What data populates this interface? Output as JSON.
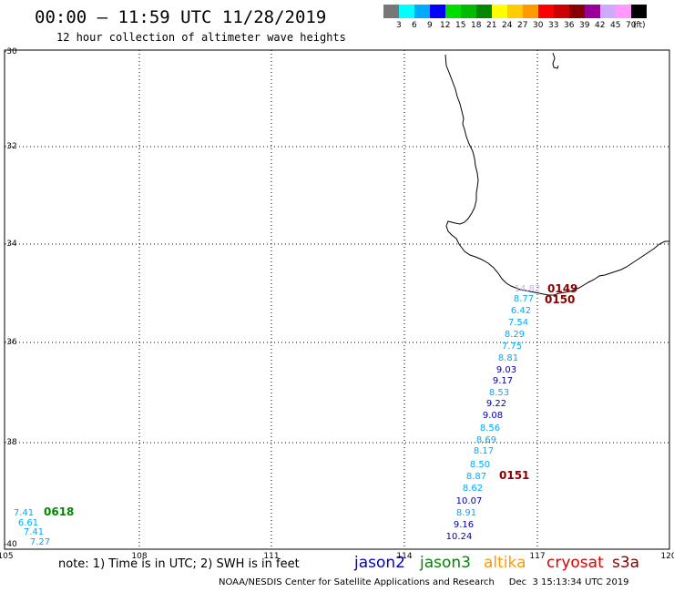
{
  "header": {
    "title": "00:00 – 11:59 UTC 11/28/2019",
    "subtitle": "12 hour collection of altimeter wave heights"
  },
  "colorbar": {
    "colors": [
      "#777777",
      "#00ffff",
      "#00aaff",
      "#0000ff",
      "#00dd00",
      "#00bb00",
      "#008800",
      "#ffff00",
      "#ffcc00",
      "#ff9900",
      "#ff0000",
      "#cc0000",
      "#880000",
      "#990099",
      "#ccaaff",
      "#ff99ff",
      "#000000"
    ],
    "labels": [
      "3",
      "6",
      "9",
      "12",
      "15",
      "18",
      "21",
      "24",
      "27",
      "30",
      "33",
      "36",
      "39",
      "42",
      "45",
      "70",
      "(ft)"
    ]
  },
  "axes": {
    "lat_labels": [
      "-30",
      "-32",
      "-34",
      "-36",
      "-38",
      "-40"
    ],
    "lon_labels": [
      "105",
      "108",
      "111",
      "114",
      "117",
      "120"
    ]
  },
  "passes": [
    {
      "label": "0149",
      "color": "#880000"
    },
    {
      "label": "0150",
      "color": "#880000"
    },
    {
      "label": "0151",
      "color": "#880000"
    },
    {
      "label": "0618",
      "color": "#008800"
    }
  ],
  "track_values": [
    {
      "text": "14.82",
      "color": "#ccaaff"
    },
    {
      "text": "8.77",
      "color": "#00aaff"
    },
    {
      "text": "6.42",
      "color": "#00aaff"
    },
    {
      "text": "7.54",
      "color": "#00aaff"
    },
    {
      "text": "8.29",
      "color": "#00aaff"
    },
    {
      "text": "7.75",
      "color": "#00aaff"
    },
    {
      "text": "8.81",
      "color": "#00aaff"
    },
    {
      "text": "9.03",
      "color": "#0000aa"
    },
    {
      "text": "9.17",
      "color": "#0000aa"
    },
    {
      "text": "8.53",
      "color": "#00aaff"
    },
    {
      "text": "9.22",
      "color": "#0000aa"
    },
    {
      "text": "9.08",
      "color": "#0000aa"
    },
    {
      "text": "8.56",
      "color": "#00aaff"
    },
    {
      "text": "8.69",
      "color": "#00aaff"
    },
    {
      "text": "8.17",
      "color": "#00aaff"
    },
    {
      "text": "8.50",
      "color": "#00aaff"
    },
    {
      "text": "8.87",
      "color": "#00aaff"
    },
    {
      "text": "8.62",
      "color": "#00aaff"
    },
    {
      "text": "10.07",
      "color": "#0000aa"
    },
    {
      "text": "8.91",
      "color": "#00aaff"
    },
    {
      "text": "9.16",
      "color": "#0000aa"
    },
    {
      "text": "10.24",
      "color": "#0000aa"
    }
  ],
  "west_values": [
    {
      "text": "7.41",
      "color": "#00aaff"
    },
    {
      "text": "6.61",
      "color": "#00aaff"
    },
    {
      "text": "7.41",
      "color": "#00aaff"
    },
    {
      "text": "7.27",
      "color": "#00aaff"
    }
  ],
  "footer": {
    "note": "note:  1) Time is in UTC;  2) SWH is in feet",
    "satellites": [
      {
        "name": "jason2",
        "color": "#0000cc"
      },
      {
        "name": "jason3",
        "color": "#008800"
      },
      {
        "name": "altika",
        "color": "#ff9900"
      },
      {
        "name": "cryosat",
        "color": "#dd0000"
      },
      {
        "name": "s3a",
        "color": "#880000"
      }
    ],
    "credit": "NOAA/NESDIS Center for Satellite Applications and Research     Dec  3 15:13:34 UTC 2019"
  }
}
